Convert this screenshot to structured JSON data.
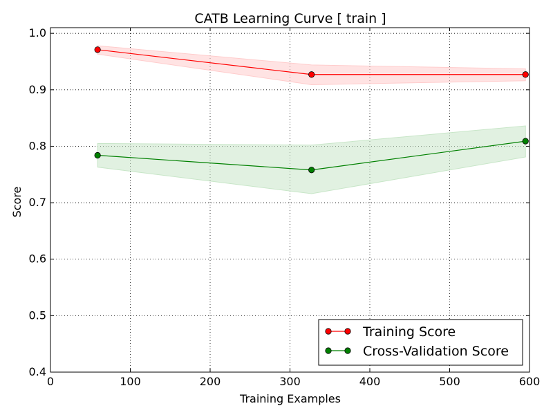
{
  "chart_data": {
    "type": "line",
    "title": "CATB Learning Curve [ train ]",
    "xlabel": "Training Examples",
    "ylabel": "Score",
    "xlim": [
      0,
      600
    ],
    "ylim": [
      0.4,
      1.01
    ],
    "xticks": [
      0,
      100,
      200,
      300,
      400,
      500,
      600
    ],
    "xtick_labels": [
      "0",
      "100",
      "200",
      "300",
      "400",
      "500",
      "600"
    ],
    "yticks": [
      0.4,
      0.5,
      0.6,
      0.7,
      0.8,
      0.9,
      1.0
    ],
    "ytick_labels": [
      "0.4",
      "0.5",
      "0.6",
      "0.7",
      "0.8",
      "0.9",
      "1.0"
    ],
    "grid": true,
    "legend_position": "lower-right",
    "x": [
      59,
      327,
      595
    ],
    "series": [
      {
        "name": "Training Score",
        "color": "#ff0000",
        "band_color": "#ffcccc",
        "values": [
          0.971,
          0.927,
          0.927
        ],
        "band_upper": [
          0.978,
          0.944,
          0.937
        ],
        "band_lower": [
          0.963,
          0.909,
          0.916
        ]
      },
      {
        "name": "Cross-Validation Score",
        "color": "#008000",
        "band_color": "#c8e6c8",
        "values": [
          0.784,
          0.758,
          0.809
        ],
        "band_upper": [
          0.805,
          0.802,
          0.836
        ],
        "band_lower": [
          0.763,
          0.716,
          0.781
        ]
      }
    ]
  }
}
